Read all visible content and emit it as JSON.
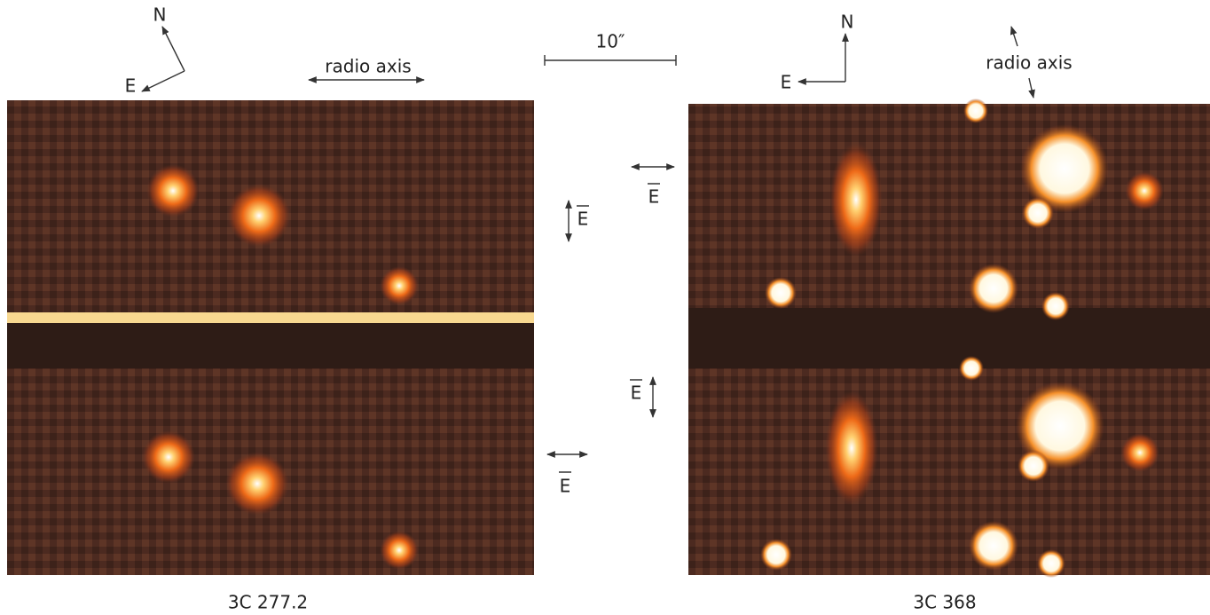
{
  "scale_bar": "10″",
  "panels": [
    {
      "label": "3C 277.2",
      "compass": {
        "north": "N",
        "east": "E"
      },
      "radio_axis": "radio axis"
    },
    {
      "label": "3C 368",
      "compass": {
        "north": "N",
        "east": "E"
      },
      "radio_axis": "radio axis"
    }
  ],
  "e_vectors": [
    "E",
    "E",
    "E",
    "E"
  ]
}
